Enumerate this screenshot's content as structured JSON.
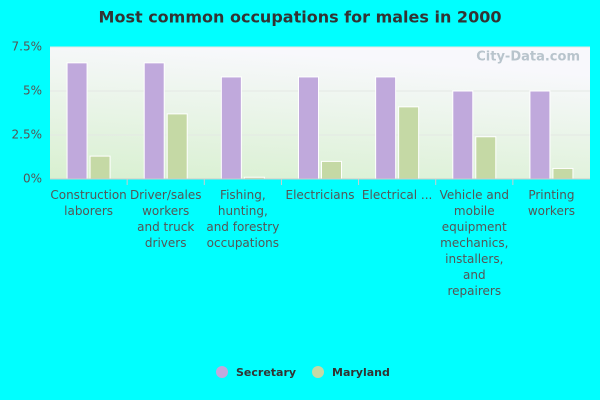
{
  "chart_data": {
    "type": "bar",
    "title": "Most common occupations for males in 2000",
    "categories": [
      "Construction\nlaborers",
      "Driver/sales\nworkers\nand truck\ndrivers",
      "Fishing,\nhunting,\nand forestry\noccupations",
      "Electricians",
      "Electrical ...",
      "Vehicle and\nmobile\nequipment\nmechanics,\ninstallers,\nand\nrepairers",
      "Printing\nworkers"
    ],
    "series": [
      {
        "name": "Secretary",
        "color": "#c0a9dc",
        "values": [
          6.6,
          6.6,
          5.8,
          5.8,
          5.8,
          5.0,
          5.0
        ]
      },
      {
        "name": "Maryland",
        "color": "#c5d9a5",
        "values": [
          1.3,
          3.7,
          0.1,
          1.0,
          4.1,
          2.4,
          0.6
        ]
      }
    ],
    "ylim": [
      0,
      7.5
    ],
    "yticks": [
      {
        "value": 0,
        "label": "0%"
      },
      {
        "value": 2.5,
        "label": "2.5%"
      },
      {
        "value": 5,
        "label": "5%"
      },
      {
        "value": 7.5,
        "label": "7.5%"
      }
    ],
    "grid": true,
    "legend": "bottom",
    "watermark": "City-Data.com"
  }
}
